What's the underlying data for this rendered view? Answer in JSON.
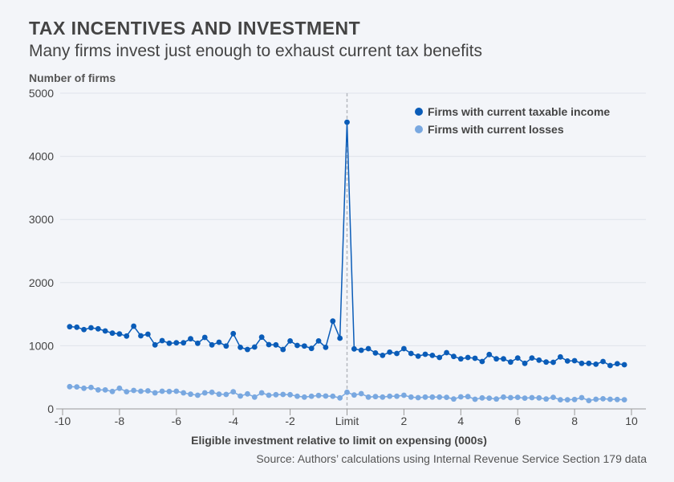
{
  "chart_data": {
    "type": "line",
    "title": "TAX INCENTIVES AND INVESTMENT",
    "subtitle": "Many firms invest just enough to exhaust current tax benefits",
    "ylabel": "Number of firms",
    "xlabel": "Eligible investment relative to limit on expensing (000s)",
    "source": "Source: Authors’ calculations using Internal Revenue Service Section 179 data",
    "xlim": [
      -10,
      10
    ],
    "ylim": [
      0,
      5000
    ],
    "x_ticks": [
      -10,
      -8,
      -6,
      -4,
      -2,
      0,
      2,
      4,
      6,
      8,
      10
    ],
    "x_tick_labels": [
      "-10",
      "-8",
      "-6",
      "-4",
      "-2",
      "Limit",
      "2",
      "4",
      "6",
      "8",
      "10"
    ],
    "y_ticks": [
      0,
      1000,
      2000,
      3000,
      4000,
      5000
    ],
    "y_tick_labels": [
      "0",
      "1000",
      "2000",
      "3000",
      "4000",
      "5000"
    ],
    "reference_line": {
      "x": 0,
      "style": "dashed"
    },
    "grid": "horizontal",
    "legend_placement": "top-right",
    "x_start": -9.75,
    "x_step": 0.25,
    "series": [
      {
        "name": "Firms with current taxable income",
        "color": "#0a5cb8",
        "values": [
          1302,
          1294,
          1256,
          1285,
          1268,
          1234,
          1200,
          1187,
          1154,
          1310,
          1158,
          1183,
          1014,
          1081,
          1039,
          1047,
          1047,
          1111,
          1039,
          1132,
          1014,
          1056,
          996,
          1192,
          975,
          941,
          980,
          1136,
          1018,
          1014,
          941,
          1077,
          1005,
          996,
          958,
          1077,
          975,
          1391,
          1120,
          4540,
          950,
          929,
          954,
          886,
          848,
          899,
          878,
          954,
          878,
          835,
          865,
          848,
          814,
          891,
          831,
          793,
          814,
          802,
          751,
          861,
          793,
          793,
          742,
          806,
          721,
          806,
          772,
          742,
          738,
          823,
          759,
          763,
          721,
          721,
          708,
          751,
          687,
          716,
          700
        ]
      },
      {
        "name": "Firms with current losses",
        "color": "#79a8e0",
        "values": [
          352,
          348,
          327,
          340,
          301,
          301,
          276,
          327,
          272,
          293,
          280,
          286,
          254,
          280,
          276,
          280,
          254,
          233,
          216,
          254,
          263,
          233,
          229,
          271,
          204,
          238,
          187,
          254,
          216,
          225,
          229,
          225,
          200,
          187,
          200,
          212,
          204,
          200,
          174,
          263,
          220,
          242,
          187,
          195,
          187,
          200,
          200,
          216,
          187,
          178,
          187,
          187,
          187,
          183,
          157,
          191,
          195,
          153,
          174,
          170,
          157,
          187,
          178,
          183,
          170,
          178,
          174,
          157,
          183,
          145,
          145,
          149,
          178,
          132,
          153,
          161,
          153,
          149,
          145
        ]
      }
    ]
  }
}
